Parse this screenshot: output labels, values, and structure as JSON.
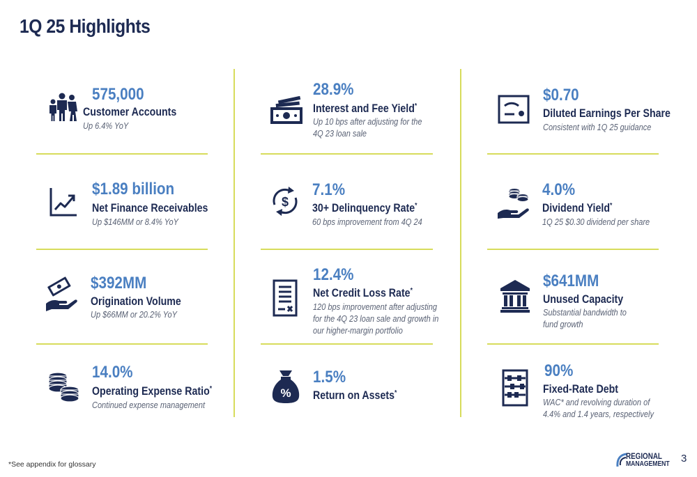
{
  "title": "1Q 25 Highlights",
  "footnote": "*See appendix for glossary",
  "page_number": "3",
  "logo": {
    "line1": "REGIONAL",
    "line2": "MANAGEMENT"
  },
  "colors": {
    "navy": "#1d2a52",
    "value_blue": "#4a7fc1",
    "divider": "#d7dc5b"
  },
  "columns": [
    {
      "items": [
        {
          "icon": "family-icon",
          "value": "575,000",
          "label": "Customer Accounts",
          "footnote_mark": "",
          "note": [
            "Up 6.4% YoY"
          ]
        },
        {
          "icon": "growth-chart-icon",
          "value": "$1.89 billion",
          "label": "Net Finance Receivables",
          "footnote_mark": "",
          "note": [
            "Up $146MM or 8.4% YoY"
          ]
        },
        {
          "icon": "hand-money-icon",
          "value": "$392MM",
          "label": "Origination Volume",
          "footnote_mark": "",
          "note": [
            "Up $66MM or 20.2% YoY"
          ]
        },
        {
          "icon": "coin-stacks-icon",
          "value": "14.0%",
          "label": "Operating Expense Ratio",
          "footnote_mark": "*",
          "note": [
            "Continued expense management"
          ]
        }
      ]
    },
    {
      "items": [
        {
          "icon": "cash-bill-icon",
          "value": "28.9%",
          "label": "Interest and Fee Yield",
          "footnote_mark": "*",
          "note": [
            "Up 10 bps after adjusting for the",
            "4Q 23 loan sale"
          ]
        },
        {
          "icon": "dollar-cycle-icon",
          "value": "7.1%",
          "label": "30+ Delinquency Rate",
          "footnote_mark": "*",
          "note": [
            "60 bps improvement from 4Q 24"
          ]
        },
        {
          "icon": "receipt-icon",
          "value": "12.4%",
          "label": "Net Credit Loss Rate",
          "footnote_mark": "*",
          "note": [
            "120 bps improvement after adjusting",
            "for the 4Q 23 loan sale and growth in",
            "our higher-margin portfolio"
          ]
        },
        {
          "icon": "percent-bag-icon",
          "value": "1.5%",
          "label": "Return on Assets",
          "footnote_mark": "*",
          "note": []
        }
      ]
    },
    {
      "items": [
        {
          "icon": "certificate-icon",
          "value": "$0.70",
          "label": "Diluted Earnings Per Share",
          "footnote_mark": "",
          "note": [
            "Consistent with 1Q 25 guidance"
          ]
        },
        {
          "icon": "hand-coins-icon",
          "value": "4.0%",
          "label": "Dividend Yield",
          "footnote_mark": "*",
          "note": [
            "1Q 25 $0.30 dividend per share"
          ]
        },
        {
          "icon": "bank-building-icon",
          "value": "$641MM",
          "label": "Unused Capacity",
          "footnote_mark": "",
          "note": [
            "Substantial bandwidth to",
            "fund growth"
          ]
        },
        {
          "icon": "abacus-icon",
          "value": "90%",
          "label": "Fixed-Rate Debt",
          "footnote_mark": "",
          "note": [
            "WAC* and revolving duration of",
            "4.4% and 1.4 years, respectively"
          ]
        }
      ]
    }
  ]
}
